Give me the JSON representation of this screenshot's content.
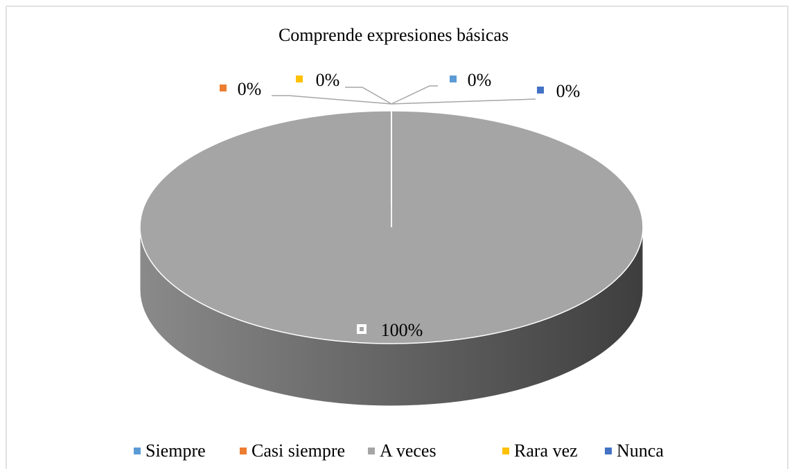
{
  "chart_data": {
    "type": "pie",
    "title": "Comprende expresiones básicas",
    "categories": [
      "Siempre",
      "Casi siempre",
      "A veces",
      "Rara vez",
      "Nunca"
    ],
    "values": [
      0,
      0,
      100,
      0,
      0
    ],
    "value_labels": [
      "0%",
      "0%",
      "100%",
      "0%",
      "0%"
    ],
    "colors": [
      "#5b9bd5",
      "#ed7d31",
      "#a5a5a5",
      "#ffc000",
      "#4472c4"
    ],
    "legend": "bottom"
  }
}
